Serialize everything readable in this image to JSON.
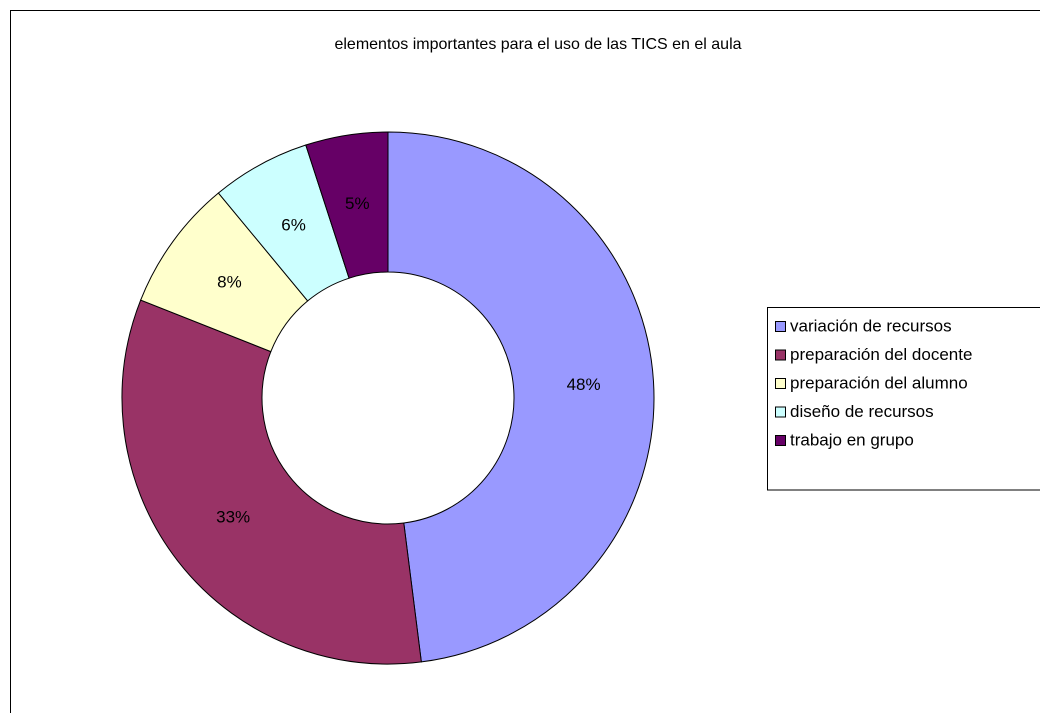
{
  "chart_data": {
    "type": "donut",
    "title": "elementos importantes para el uso de las TICS en el aula",
    "categories": [
      "variación de recursos",
      "preparación del docente",
      "preparación del alumno",
      "diseño de recursos",
      "trabajo en grupo"
    ],
    "values": [
      48,
      33,
      8,
      6,
      5
    ],
    "value_labels": [
      "48%",
      "33%",
      "8%",
      "6%",
      "5%"
    ],
    "colors": [
      "#9999ff",
      "#993366",
      "#ffffcc",
      "#ccffff",
      "#660066"
    ],
    "legend": "right"
  }
}
